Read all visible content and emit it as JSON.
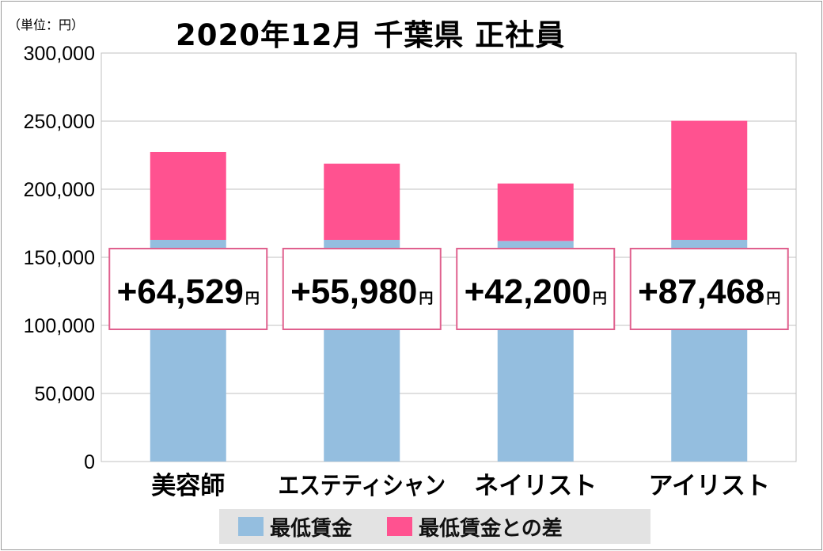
{
  "unit_label": "（単位：円）",
  "title": "2020年12月 千葉県 正社員",
  "colors": {
    "min_wage": "#94bedf",
    "difference": "#ff5290",
    "diff_box_border": "#e0608e",
    "grid": "#c0c0c0"
  },
  "legend": {
    "min_wage": "最低賃金",
    "difference": "最低賃金との差"
  },
  "chart_data": {
    "type": "bar",
    "stacked": true,
    "categories": [
      "美容師",
      "エステティシャン",
      "ネイリスト",
      "アイリスト"
    ],
    "series": [
      {
        "name": "最低賃金",
        "values": [
          162800,
          162800,
          162000,
          162800
        ]
      },
      {
        "name": "最低賃金との差",
        "values": [
          64529,
          55980,
          42200,
          87468
        ]
      }
    ],
    "data_labels": [
      "+64,529",
      "+55,980",
      "+42,200",
      "+87,468"
    ],
    "data_label_unit": "円",
    "ylim": [
      0,
      300000
    ],
    "yticks": [
      0,
      50000,
      100000,
      150000,
      200000,
      250000,
      300000
    ],
    "ytick_labels": [
      "0",
      "50,000",
      "100,000",
      "150,000",
      "200,000",
      "250,000",
      "300,000"
    ],
    "grid": true,
    "legend_position": "bottom"
  }
}
